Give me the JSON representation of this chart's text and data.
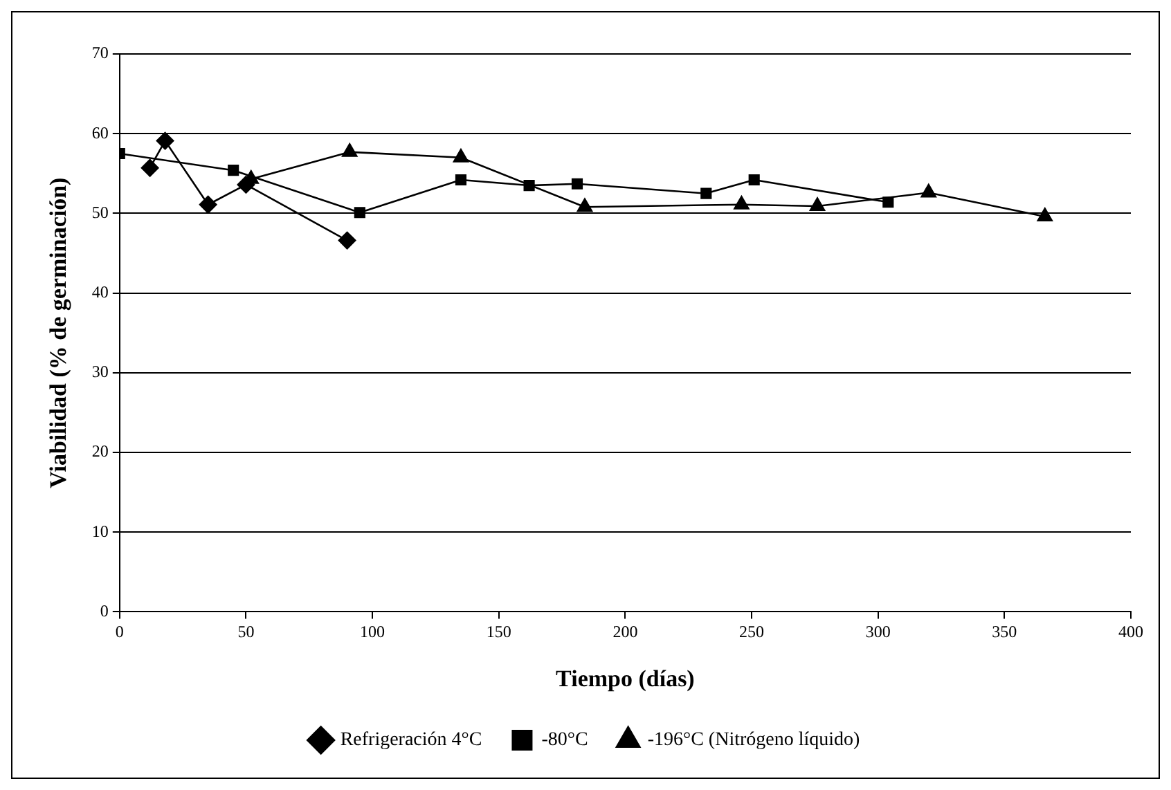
{
  "chart_data": {
    "type": "line",
    "xlabel": "Tiempo (días)",
    "ylabel": "Viabilidad (% de germinación)",
    "xlim": [
      0,
      400
    ],
    "xticks": [
      0,
      50,
      100,
      150,
      200,
      250,
      300,
      350,
      400
    ],
    "ylim": [
      0,
      70
    ],
    "yticks": [
      0,
      10,
      20,
      30,
      40,
      50,
      60,
      70
    ],
    "grid": "y",
    "legend": "bottom",
    "series": [
      {
        "name": "Refrigeración 4°C",
        "color": "#000000",
        "marker": "diamond",
        "x": [
          12,
          18,
          35,
          50,
          90
        ],
        "values": [
          55.7,
          59.1,
          51.1,
          53.6,
          46.6
        ]
      },
      {
        "name": "-80°C",
        "color": "#000000",
        "marker": "square",
        "x": [
          0,
          45,
          95,
          135,
          162,
          181,
          232,
          251,
          304
        ],
        "values": [
          57.5,
          55.4,
          50.1,
          54.2,
          53.5,
          53.7,
          52.5,
          54.2,
          51.4
        ]
      },
      {
        "name": "-196°C (Nitrógeno líquido)",
        "color": "#000000",
        "marker": "triangle",
        "x": [
          52,
          91,
          135,
          184,
          246,
          276,
          320,
          366
        ],
        "values": [
          54.3,
          57.7,
          57,
          50.8,
          51.1,
          50.9,
          52.6,
          49.6
        ]
      }
    ]
  }
}
